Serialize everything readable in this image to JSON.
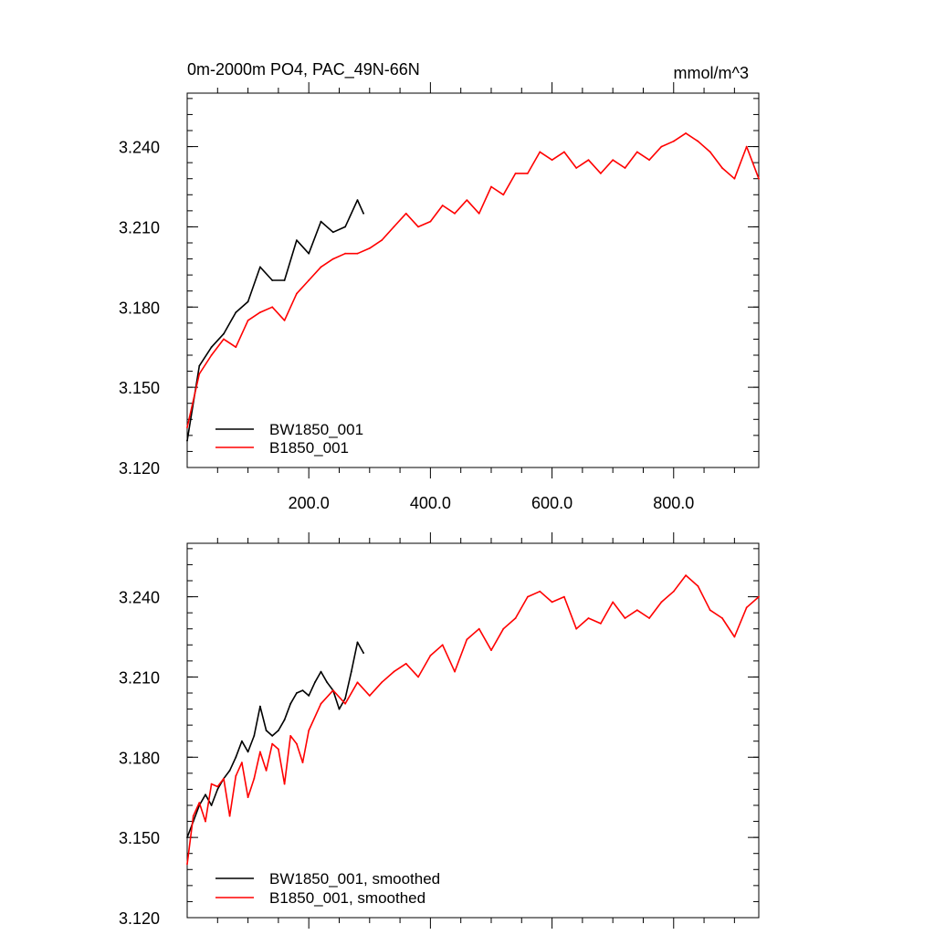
{
  "colors": {
    "bw_series": "#000000",
    "b_series": "#ff0000",
    "frame": "#000000"
  },
  "chart_data": [
    {
      "type": "line",
      "title": "0m-2000m PO4, PAC_49N-66N",
      "units_label": "mmol/m^3",
      "xlim": [
        0,
        940
      ],
      "ylim": [
        3.12,
        3.26
      ],
      "yticks": [
        3.12,
        3.15,
        3.18,
        3.21,
        3.24
      ],
      "ytick_labels": [
        "3.120",
        "3.150",
        "3.180",
        "3.210",
        "3.240"
      ],
      "xticks": [
        200,
        400,
        600,
        800
      ],
      "xtick_labels": [
        "200.0",
        "400.0",
        "600.0",
        "800.0"
      ],
      "legend_position": "bottom-left",
      "legend": [
        "BW1850_001",
        "B1850_001"
      ],
      "series": [
        {
          "name": "BW1850_001",
          "color": "#000000",
          "x": [
            0,
            20,
            40,
            60,
            80,
            100,
            120,
            140,
            160,
            180,
            200,
            220,
            240,
            260,
            280,
            290
          ],
          "y": [
            3.13,
            3.158,
            3.165,
            3.17,
            3.178,
            3.182,
            3.195,
            3.19,
            3.19,
            3.205,
            3.2,
            3.212,
            3.208,
            3.21,
            3.22,
            3.215
          ]
        },
        {
          "name": "B1850_001",
          "color": "#ff0000",
          "x": [
            0,
            20,
            40,
            60,
            80,
            100,
            120,
            140,
            160,
            180,
            200,
            220,
            240,
            260,
            280,
            300,
            320,
            340,
            360,
            380,
            400,
            420,
            440,
            460,
            480,
            500,
            520,
            540,
            560,
            580,
            600,
            620,
            640,
            660,
            680,
            700,
            720,
            740,
            760,
            780,
            800,
            820,
            840,
            860,
            880,
            900,
            920,
            940
          ],
          "y": [
            3.135,
            3.155,
            3.162,
            3.168,
            3.165,
            3.175,
            3.178,
            3.18,
            3.175,
            3.185,
            3.19,
            3.195,
            3.198,
            3.2,
            3.2,
            3.202,
            3.205,
            3.21,
            3.215,
            3.21,
            3.212,
            3.218,
            3.215,
            3.22,
            3.215,
            3.225,
            3.222,
            3.23,
            3.23,
            3.238,
            3.235,
            3.238,
            3.232,
            3.235,
            3.23,
            3.235,
            3.232,
            3.238,
            3.235,
            3.24,
            3.242,
            3.245,
            3.242,
            3.238,
            3.232,
            3.228,
            3.24,
            3.228
          ]
        }
      ]
    },
    {
      "type": "line",
      "title": "",
      "xlim": [
        0,
        940
      ],
      "ylim": [
        3.12,
        3.26
      ],
      "yticks": [
        3.12,
        3.15,
        3.18,
        3.21,
        3.24
      ],
      "ytick_labels": [
        "3.120",
        "3.150",
        "3.180",
        "3.210",
        "3.240"
      ],
      "xticks": [
        200,
        400,
        600,
        800
      ],
      "xtick_labels": [],
      "legend_position": "bottom-left",
      "legend": [
        "BW1850_001, smoothed",
        "B1850_001, smoothed"
      ],
      "series": [
        {
          "name": "BW1850_001, smoothed",
          "color": "#000000",
          "x": [
            0,
            10,
            20,
            30,
            40,
            50,
            60,
            70,
            80,
            90,
            100,
            110,
            120,
            130,
            140,
            150,
            160,
            170,
            180,
            190,
            200,
            210,
            220,
            230,
            240,
            250,
            260,
            270,
            280,
            290
          ],
          "y": [
            3.15,
            3.156,
            3.162,
            3.166,
            3.162,
            3.168,
            3.172,
            3.175,
            3.18,
            3.186,
            3.182,
            3.188,
            3.199,
            3.19,
            3.188,
            3.19,
            3.194,
            3.2,
            3.204,
            3.205,
            3.203,
            3.208,
            3.212,
            3.208,
            3.205,
            3.198,
            3.202,
            3.212,
            3.223,
            3.219
          ]
        },
        {
          "name": "B1850_001, smoothed",
          "color": "#ff0000",
          "x": [
            0,
            10,
            20,
            30,
            40,
            50,
            60,
            70,
            80,
            90,
            100,
            110,
            120,
            130,
            140,
            150,
            160,
            170,
            180,
            190,
            200,
            220,
            240,
            260,
            280,
            300,
            320,
            340,
            360,
            380,
            400,
            420,
            440,
            460,
            480,
            500,
            520,
            540,
            560,
            580,
            600,
            620,
            640,
            660,
            680,
            700,
            720,
            740,
            760,
            780,
            800,
            820,
            840,
            860,
            880,
            900,
            920,
            940
          ],
          "y": [
            3.14,
            3.158,
            3.163,
            3.156,
            3.17,
            3.169,
            3.172,
            3.158,
            3.173,
            3.178,
            3.165,
            3.172,
            3.182,
            3.175,
            3.185,
            3.183,
            3.17,
            3.188,
            3.185,
            3.178,
            3.19,
            3.2,
            3.205,
            3.2,
            3.208,
            3.203,
            3.208,
            3.212,
            3.215,
            3.21,
            3.218,
            3.222,
            3.212,
            3.224,
            3.228,
            3.22,
            3.228,
            3.232,
            3.24,
            3.242,
            3.238,
            3.24,
            3.228,
            3.232,
            3.23,
            3.238,
            3.232,
            3.235,
            3.232,
            3.238,
            3.242,
            3.248,
            3.244,
            3.235,
            3.232,
            3.225,
            3.236,
            3.24
          ]
        }
      ]
    }
  ]
}
